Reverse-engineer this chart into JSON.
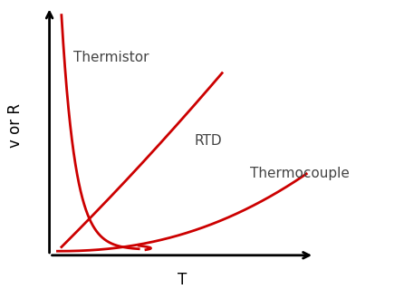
{
  "background_color": "#ffffff",
  "ylabel": "v or R",
  "xlabel": "T",
  "curve_color": "#cc0000",
  "curve_linewidth": 2.0,
  "thermistor_label": "Thermistor",
  "rtd_label": "RTD",
  "thermocouple_label": "Thermocouple",
  "label_color": "#444444",
  "label_fontsize": 11,
  "axis_label_fontsize": 12
}
